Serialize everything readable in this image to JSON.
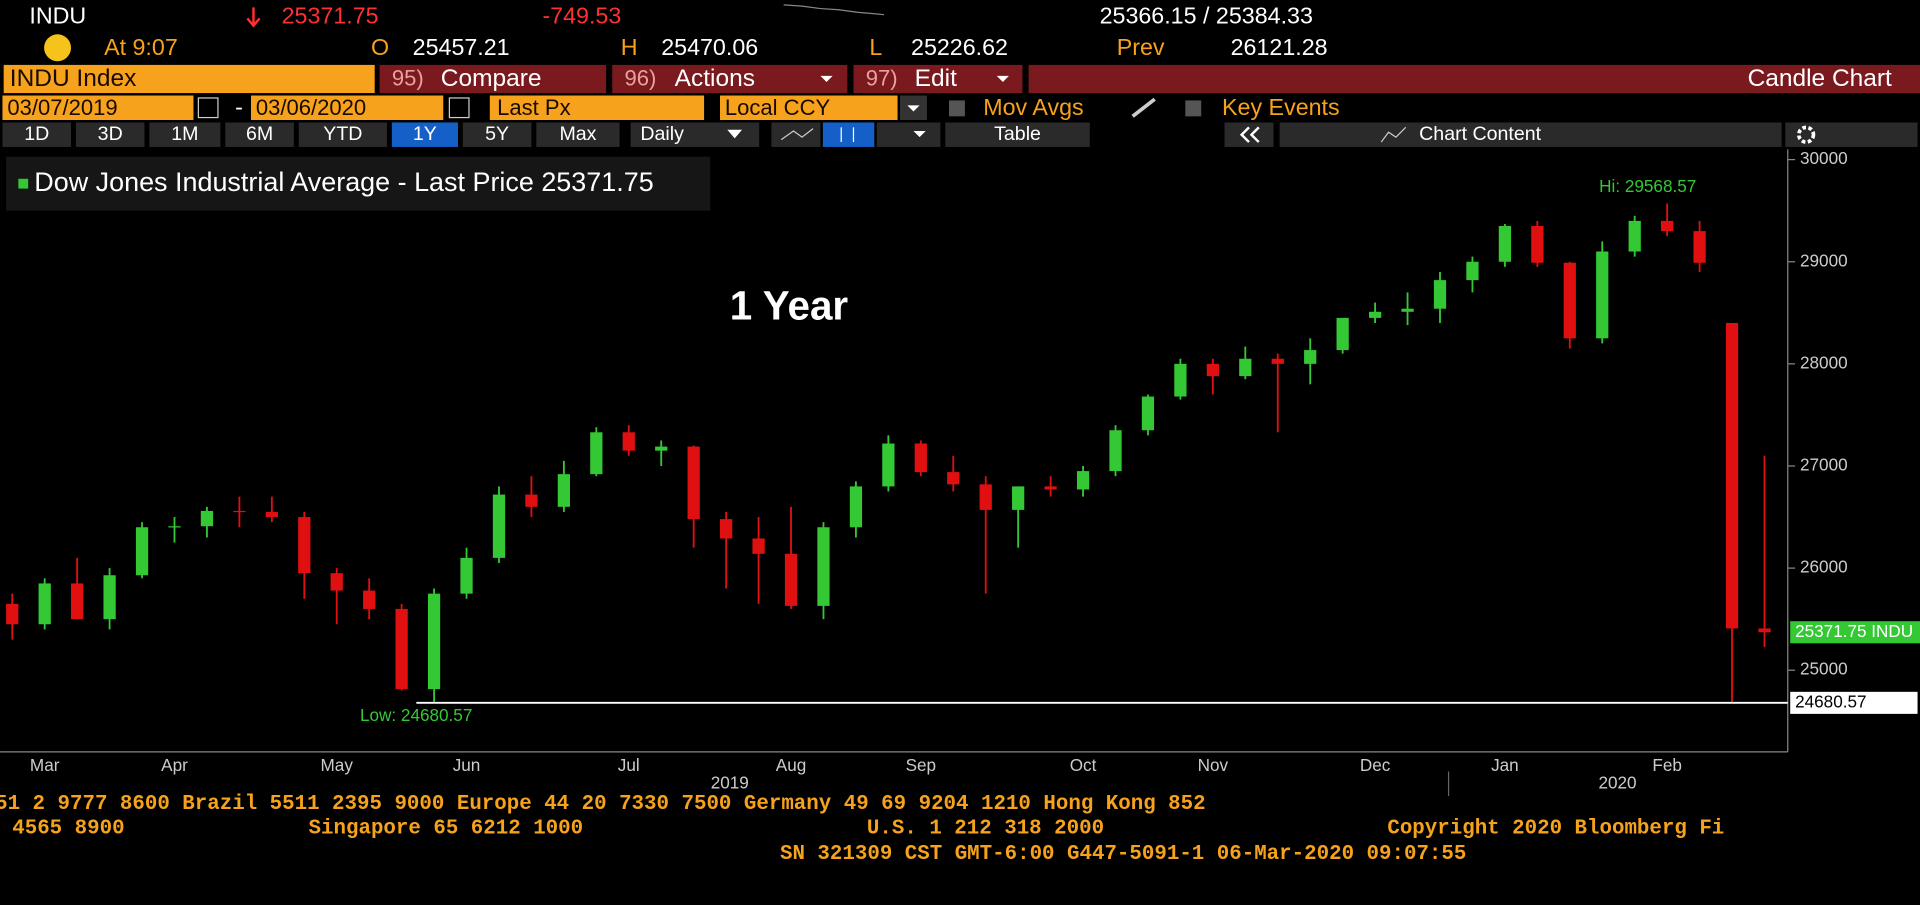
{
  "header": {
    "ticker": "INDU",
    "last": "25371.75",
    "change": "-749.53",
    "bid_ask": "25366.15 / 25384.33",
    "time": "At 9:07",
    "open_label": "O",
    "open": "25457.21",
    "high_label": "H",
    "high": "25470.06",
    "low_label": "L",
    "low": "25226.62",
    "prev_label": "Prev",
    "prev": "26121.28"
  },
  "menu": {
    "security": "INDU Index",
    "compare_num": "95)",
    "compare": "Compare",
    "actions_num": "96)",
    "actions": "Actions",
    "edit_num": "97)",
    "edit": "Edit",
    "title": "Candle Chart"
  },
  "toolbar": {
    "start": "03/07/2019",
    "separator": "-",
    "end": "03/06/2020",
    "field": "Last Px",
    "currency": "Local CCY",
    "mov_avgs": "Mov Avgs",
    "key_events": "Key Events",
    "periods": [
      "1D",
      "3D",
      "1M",
      "6M",
      "YTD",
      "1Y",
      "5Y",
      "Max"
    ],
    "active_period": 5,
    "frequency": "Daily",
    "table": "Table",
    "chart_content": "Chart Content"
  },
  "chart_data": {
    "type": "candlestick",
    "legend": "Dow Jones Industrial Average - Last Price 25371.75",
    "annotation": "1 Year",
    "up_color": "#35c835",
    "down_color": "#e01010",
    "categories": [
      null,
      "Mar",
      null,
      null,
      null,
      "Apr",
      null,
      null,
      null,
      null,
      "May",
      null,
      null,
      null,
      "Jun",
      null,
      null,
      null,
      null,
      "Jul",
      null,
      null,
      null,
      null,
      "Aug",
      null,
      null,
      null,
      "Sep",
      null,
      null,
      null,
      null,
      "Oct",
      null,
      null,
      null,
      "Nov",
      null,
      null,
      null,
      null,
      "Dec",
      null,
      null,
      null,
      "Jan",
      null,
      null,
      null,
      null,
      "Feb",
      null,
      null,
      null
    ],
    "open": [
      25650,
      25450,
      25850,
      25500,
      25930,
      26400,
      26410,
      26560,
      26550,
      26500,
      25950,
      25780,
      25600,
      24815,
      25750,
      26100,
      26720,
      26600,
      26920,
      27330,
      27150,
      27190,
      26480,
      26290,
      26140,
      25630,
      26400,
      26800,
      27220,
      26940,
      26820,
      26570,
      26800,
      26770,
      26950,
      27350,
      27680,
      28000,
      27880,
      28050,
      28000,
      28135,
      28450,
      28510,
      28540,
      28820,
      29000,
      29350,
      28990,
      28250,
      29100,
      29400,
      29300,
      28400,
      25409
    ],
    "high": [
      25750,
      25900,
      26100,
      26000,
      26450,
      26500,
      26600,
      26700,
      26700,
      26550,
      26000,
      25900,
      25650,
      25800,
      26200,
      26800,
      26900,
      27050,
      27380,
      27400,
      27250,
      27200,
      26550,
      26500,
      26600,
      26450,
      26850,
      27300,
      27250,
      27100,
      26900,
      26800,
      26900,
      27000,
      27400,
      27700,
      28050,
      28050,
      28170,
      28100,
      28250,
      28450,
      28600,
      28700,
      28900,
      29050,
      29370,
      29400,
      29000,
      29200,
      29450,
      29570,
      29400,
      28400,
      27100
    ],
    "low": [
      25300,
      25400,
      25500,
      25400,
      25900,
      26250,
      26300,
      26400,
      26450,
      25700,
      25450,
      25500,
      24800,
      24690,
      25700,
      26050,
      26500,
      26550,
      26900,
      27100,
      27000,
      26200,
      25800,
      25650,
      25600,
      25500,
      26300,
      26750,
      26900,
      26750,
      25750,
      26200,
      26700,
      26700,
      26900,
      27300,
      27650,
      27700,
      27850,
      27330,
      27800,
      28100,
      28400,
      28380,
      28400,
      28700,
      28950,
      28950,
      28150,
      28200,
      29050,
      29250,
      28900,
      24681,
      25226
    ],
    "close": [
      25450,
      25850,
      25500,
      25930,
      26400,
      26410,
      26560,
      26550,
      26500,
      25950,
      25780,
      25600,
      24815,
      25750,
      26100,
      26720,
      26600,
      26920,
      27330,
      27150,
      27190,
      26480,
      26290,
      26140,
      25630,
      26400,
      26800,
      27220,
      26940,
      26820,
      26570,
      26800,
      26770,
      26950,
      27350,
      27680,
      28000,
      27880,
      28050,
      28000,
      28135,
      28450,
      28510,
      28540,
      28820,
      29000,
      29350,
      28990,
      28250,
      29100,
      29400,
      29300,
      28990,
      25409,
      25372
    ],
    "ylim": [
      24200,
      30100
    ],
    "yticks": [
      25000,
      26000,
      27000,
      28000,
      29000,
      30000
    ],
    "hi_label": "Hi: 29568.57",
    "low_label": "Low: 24680.57",
    "low_line": 24680.57,
    "last_tag": "25371.75 INDU",
    "years": [
      "2019",
      "2020"
    ]
  },
  "footer": {
    "line1": "51 2 9777 8600 Brazil 5511 2395 9000 Europe 44 20 7330 7500 Germany 49 69 9204 1210 Hong Kong 852",
    "line2a": "4565 8900",
    "line2b": "Singapore 65 6212 1000",
    "line2c": "U.S. 1 212 318 2000",
    "line2d": "Copyright 2020 Bloomberg Fi",
    "line3": "SN 321309 CST  GMT-6:00 G447-5091-1 06-Mar-2020 09:07:55"
  }
}
